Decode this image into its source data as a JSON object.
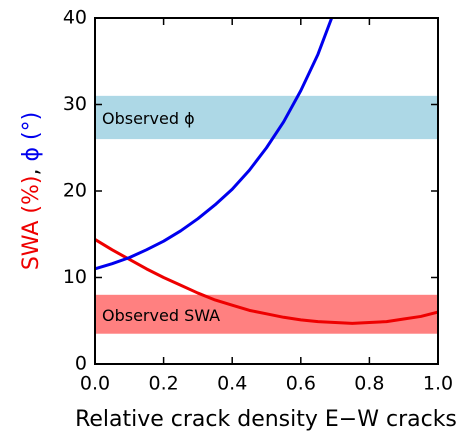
{
  "chart_data": {
    "type": "line",
    "xlabel": "Relative crack density E−W cracks",
    "ylabel": [
      "SWA (%)",
      ",",
      "ϕ (°)"
    ],
    "series": [
      {
        "name": "SWA (%)",
        "color": "#ee0000",
        "x": [
          0,
          0.05,
          0.1,
          0.15,
          0.2,
          0.25,
          0.3,
          0.35,
          0.4,
          0.45,
          0.5,
          0.55,
          0.6,
          0.65,
          0.7,
          0.75,
          0.8,
          0.85,
          0.9,
          0.95,
          1.0
        ],
        "values": [
          14.4,
          13.2,
          12.1,
          11.0,
          10.0,
          9.1,
          8.2,
          7.4,
          6.8,
          6.2,
          5.8,
          5.4,
          5.1,
          4.9,
          4.8,
          4.7,
          4.8,
          4.9,
          5.2,
          5.5,
          6.0
        ]
      },
      {
        "name": "ϕ (°)",
        "color": "#0000ee",
        "x": [
          0,
          0.05,
          0.1,
          0.15,
          0.2,
          0.25,
          0.3,
          0.35,
          0.4,
          0.45,
          0.5,
          0.55,
          0.6,
          0.65,
          0.69
        ],
        "values": [
          11.0,
          11.6,
          12.3,
          13.2,
          14.2,
          15.4,
          16.8,
          18.4,
          20.2,
          22.4,
          25.0,
          28.0,
          31.6,
          35.8,
          40.0
        ]
      }
    ],
    "bands": [
      {
        "label": "Observed ϕ",
        "range": [
          26,
          31
        ],
        "color": "#add8e6"
      },
      {
        "label": "Observed SWA",
        "range": [
          3.5,
          8
        ],
        "color": "#ff8080"
      }
    ],
    "xlim": [
      0,
      1.0
    ],
    "xticks": [
      {
        "value": 0,
        "label": "0.0"
      },
      0.2,
      0.4,
      0.6,
      0.8,
      {
        "value": 1.0,
        "label": "1.0"
      }
    ],
    "ylim": [
      0,
      40
    ],
    "yticks": [
      0,
      10,
      20,
      30,
      40
    ]
  }
}
